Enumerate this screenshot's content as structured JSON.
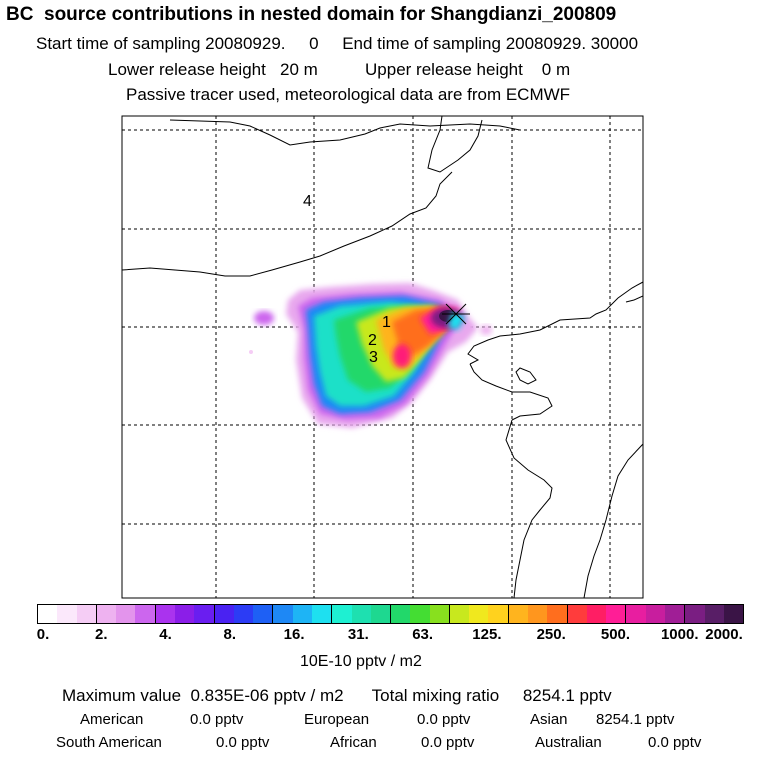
{
  "title": "BC  source contributions in nested domain for Shangdianzi_200809",
  "sampling": {
    "start_label": "Start time of sampling",
    "start_value": "20080929.     0",
    "end_label": "End time of sampling",
    "end_value": "20080929. 30000"
  },
  "release": {
    "lower_label": "Lower release height",
    "lower_value": "20 m",
    "upper_label": "Upper release height",
    "upper_value": "0 m"
  },
  "note": "Passive tracer used, meteorological data are from ECMWF",
  "map": {
    "region_labels": [
      "1",
      "2",
      "3",
      "4"
    ],
    "receptor_marker": "x-marker-icon"
  },
  "colorbar": {
    "unit": "10E-10 pptv / m2",
    "ticks": [
      "0.",
      "2.",
      "4.",
      "8.",
      "16.",
      "31.",
      "63.",
      "125.",
      "250.",
      "500.",
      "1000.",
      "2000."
    ],
    "colors": [
      "#ffffff",
      "#fbe8fb",
      "#f5cdf5",
      "#eeb2f0",
      "#e394ec",
      "#cc66ee",
      "#aa33ee",
      "#8b1ee8",
      "#6a1ef0",
      "#4a22f2",
      "#2c3cf5",
      "#1e60f5",
      "#1e88f5",
      "#1eb4f5",
      "#1ee0f0",
      "#1ef0d2",
      "#1ee0b0",
      "#1ed890",
      "#22d86a",
      "#44dd33",
      "#88e01e",
      "#c8e81e",
      "#f0e81e",
      "#ffd21e",
      "#ffb41e",
      "#ff961e",
      "#ff6e1e",
      "#ff3c3c",
      "#ff1e64",
      "#ff1e96",
      "#e81ea0",
      "#c81e9e",
      "#a01e96",
      "#7a1e82",
      "#581e66",
      "#3a1446"
    ]
  },
  "summary": {
    "max_label": "Maximum value",
    "max_value": "0.835E-06 pptv / m2",
    "total_label": "Total mixing ratio",
    "total_value": "8254.1 pptv",
    "regions": [
      {
        "name": "American",
        "value": "0.0 pptv"
      },
      {
        "name": "European",
        "value": "0.0 pptv"
      },
      {
        "name": "Asian",
        "value": "8254.1 pptv"
      },
      {
        "name": "South American",
        "value": "0.0 pptv"
      },
      {
        "name": "African",
        "value": "0.0 pptv"
      },
      {
        "name": "Australian",
        "value": "0.0 pptv"
      }
    ]
  }
}
